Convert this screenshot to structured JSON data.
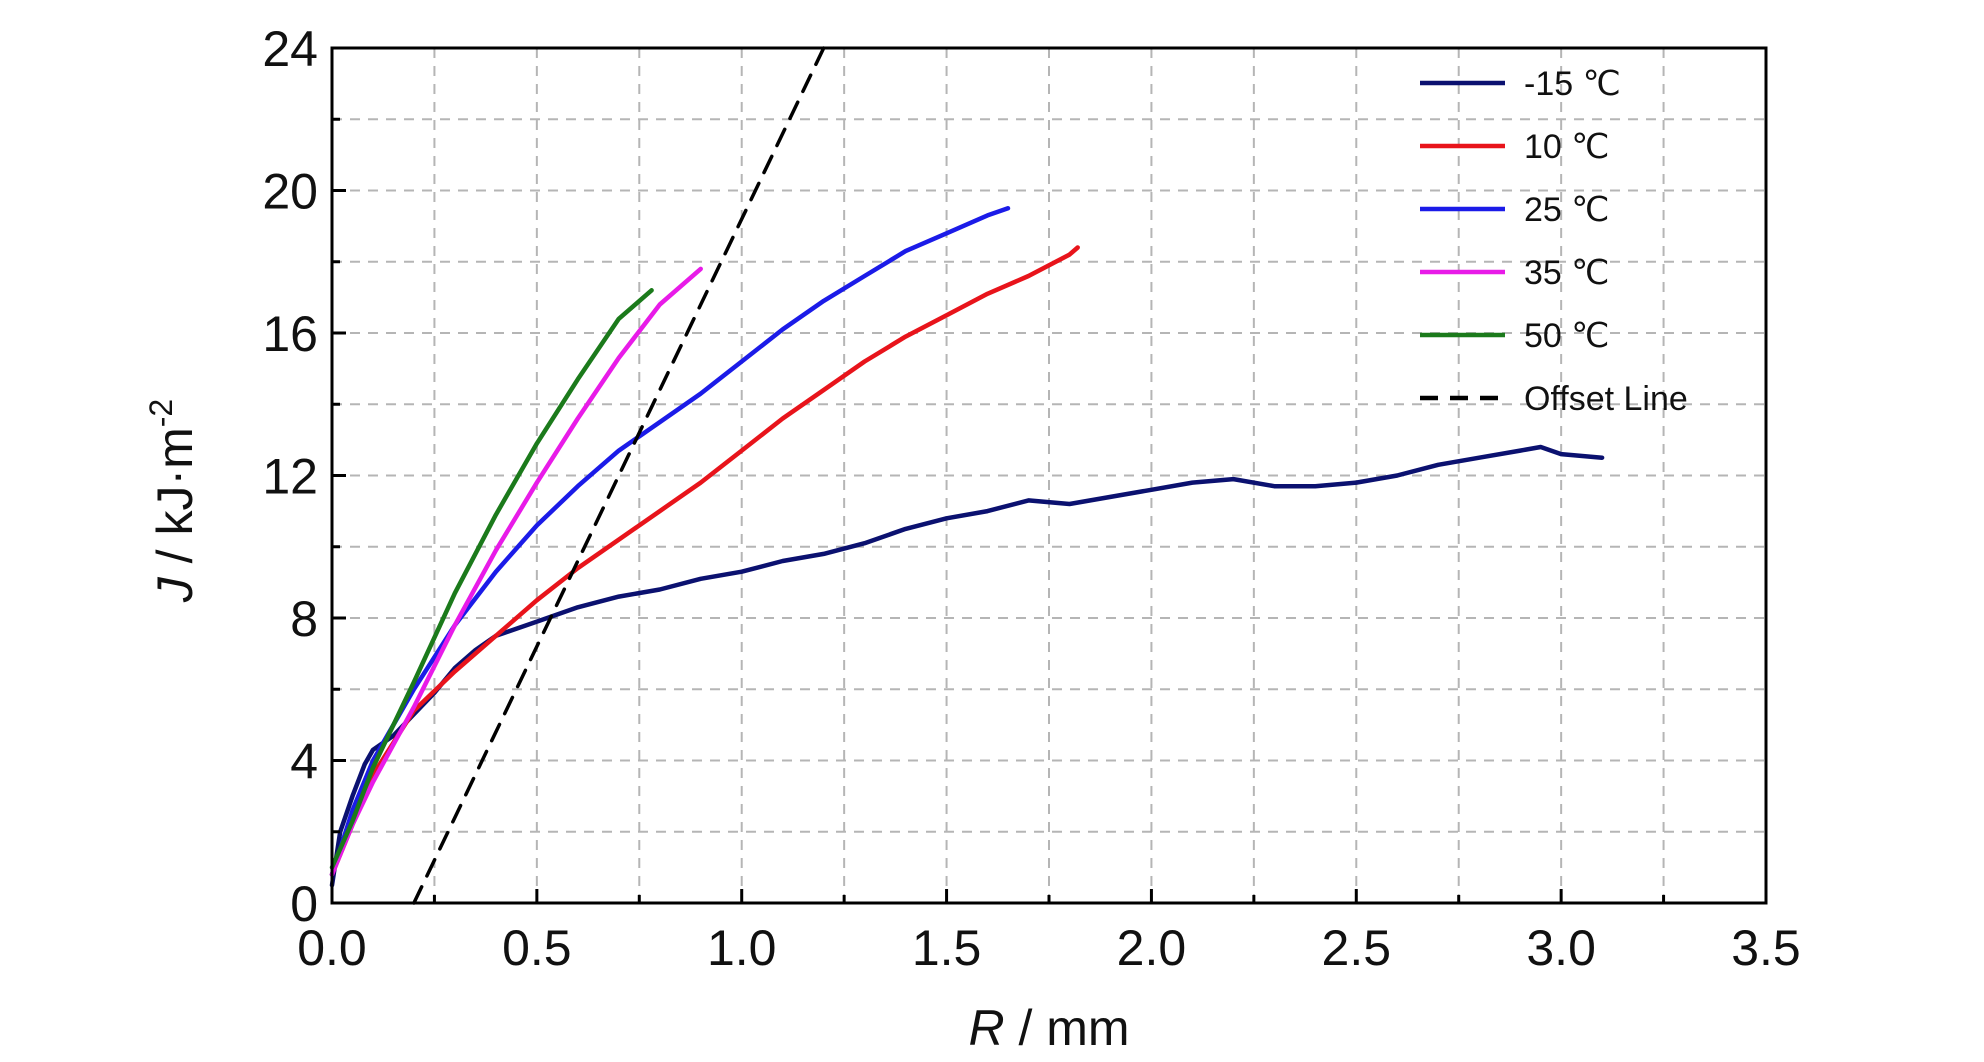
{
  "chart_data": {
    "type": "line",
    "xlabel_var": "R",
    "xlabel_unit": " / mm",
    "ylabel_var": "J",
    "ylabel_unit": " / kJ·m",
    "ylabel_sup": "-2",
    "xlim": [
      0,
      3.5
    ],
    "ylim": [
      0,
      24
    ],
    "x_ticks": [
      0,
      0.5,
      1.0,
      1.5,
      2.0,
      2.5,
      3.0,
      3.5
    ],
    "x_tick_labels": [
      "0.0",
      "0.5",
      "1.0",
      "1.5",
      "2.0",
      "2.5",
      "3.0",
      "3.5"
    ],
    "y_ticks": [
      0,
      4,
      8,
      12,
      16,
      20,
      24
    ],
    "y_tick_labels": [
      "0",
      "4",
      "8",
      "12",
      "16",
      "20",
      "24"
    ],
    "grid": true,
    "legend_position": "top-right",
    "series": [
      {
        "name": "-15 ℃",
        "color": "#0b1170",
        "dashed": false,
        "x": [
          0,
          0.02,
          0.05,
          0.08,
          0.1,
          0.15,
          0.2,
          0.25,
          0.3,
          0.35,
          0.4,
          0.5,
          0.6,
          0.7,
          0.8,
          0.9,
          1.0,
          1.1,
          1.2,
          1.3,
          1.4,
          1.5,
          1.6,
          1.7,
          1.8,
          1.9,
          2.0,
          2.1,
          2.2,
          2.3,
          2.4,
          2.5,
          2.6,
          2.7,
          2.8,
          2.9,
          2.95,
          3.0,
          3.1
        ],
        "y": [
          0.5,
          2.0,
          3.0,
          3.9,
          4.3,
          4.7,
          5.3,
          5.9,
          6.6,
          7.1,
          7.5,
          7.9,
          8.3,
          8.6,
          8.8,
          9.1,
          9.3,
          9.6,
          9.8,
          10.1,
          10.5,
          10.8,
          11.0,
          11.3,
          11.2,
          11.4,
          11.6,
          11.8,
          11.9,
          11.7,
          11.7,
          11.8,
          12.0,
          12.3,
          12.5,
          12.7,
          12.8,
          12.6,
          12.5
        ]
      },
      {
        "name": "10 ℃",
        "color": "#e8141b",
        "dashed": false,
        "x": [
          0,
          0.05,
          0.1,
          0.2,
          0.3,
          0.4,
          0.5,
          0.6,
          0.7,
          0.8,
          0.9,
          1.0,
          1.1,
          1.2,
          1.3,
          1.4,
          1.5,
          1.6,
          1.7,
          1.8,
          1.82
        ],
        "y": [
          0.8,
          2.2,
          3.6,
          5.4,
          6.5,
          7.5,
          8.5,
          9.4,
          10.2,
          11.0,
          11.8,
          12.7,
          13.6,
          14.4,
          15.2,
          15.9,
          16.5,
          17.1,
          17.6,
          18.2,
          18.4
        ]
      },
      {
        "name": "25 ℃",
        "color": "#1b1be8",
        "dashed": false,
        "x": [
          0,
          0.05,
          0.1,
          0.2,
          0.3,
          0.4,
          0.5,
          0.6,
          0.7,
          0.8,
          0.9,
          1.0,
          1.1,
          1.2,
          1.3,
          1.4,
          1.5,
          1.6,
          1.65
        ],
        "y": [
          0.8,
          2.6,
          4.0,
          6.0,
          7.8,
          9.3,
          10.6,
          11.7,
          12.7,
          13.5,
          14.3,
          15.2,
          16.1,
          16.9,
          17.6,
          18.3,
          18.8,
          19.3,
          19.5
        ]
      },
      {
        "name": "35 ℃",
        "color": "#e81be8",
        "dashed": false,
        "x": [
          0,
          0.05,
          0.1,
          0.2,
          0.3,
          0.4,
          0.5,
          0.6,
          0.7,
          0.8,
          0.9
        ],
        "y": [
          0.8,
          2.2,
          3.4,
          5.5,
          7.8,
          9.9,
          11.8,
          13.6,
          15.3,
          16.8,
          17.8
        ]
      },
      {
        "name": "50 ℃",
        "color": "#1b7a1b",
        "dashed": false,
        "x": [
          0,
          0.05,
          0.1,
          0.2,
          0.3,
          0.4,
          0.5,
          0.6,
          0.7,
          0.78
        ],
        "y": [
          1.0,
          2.3,
          3.8,
          6.2,
          8.7,
          10.9,
          12.9,
          14.7,
          16.4,
          17.2
        ]
      },
      {
        "name": "Offset Line",
        "color": "#000000",
        "dashed": true,
        "x": [
          0.2,
          1.2
        ],
        "y": [
          0,
          24
        ]
      }
    ]
  }
}
